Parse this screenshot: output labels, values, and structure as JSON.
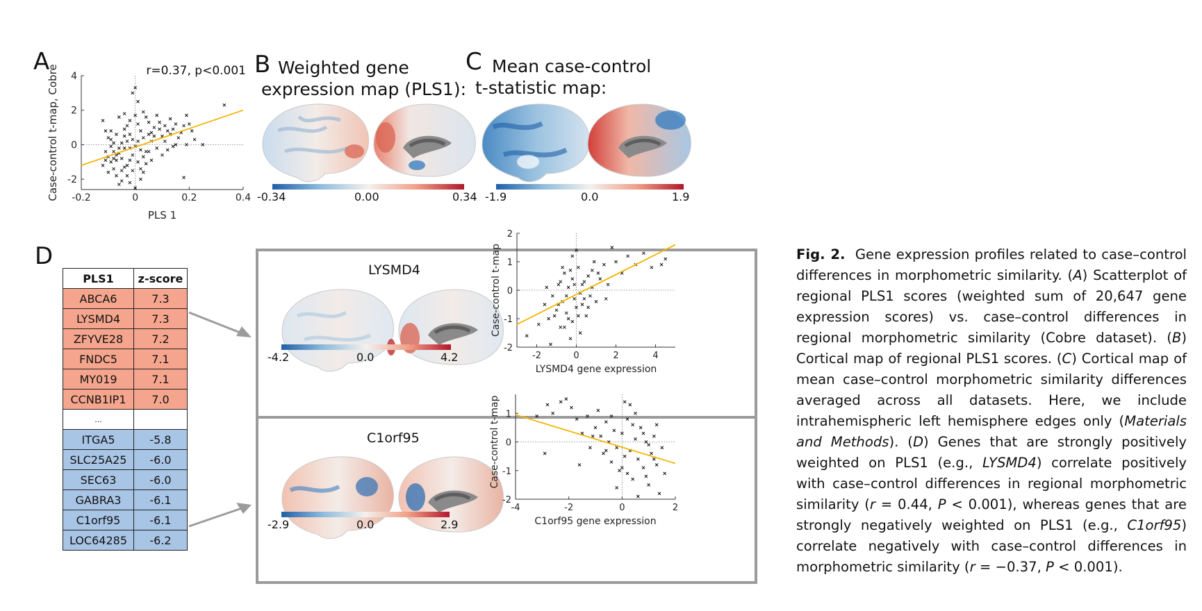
{
  "panels": {
    "a": {
      "letter": "A",
      "stats": "r=0.37, p<0.001"
    },
    "b": {
      "letter": "B",
      "title_line1": "Weighted gene",
      "title_line2": "expression map (PLS1):",
      "cbar_min": "-0.34",
      "cbar_mid": "0.00",
      "cbar_max": "0.34"
    },
    "c": {
      "letter": "C",
      "title_line1": "Mean case-control",
      "title_line2": "t-statistic map:",
      "cbar_min": "-1.9",
      "cbar_mid": "0.0",
      "cbar_max": "1.9"
    },
    "d": {
      "letter": "D"
    }
  },
  "table": {
    "headers": [
      "PLS1",
      "z-score"
    ],
    "positive_rows": [
      {
        "gene": "ABCA6",
        "z": "7.3"
      },
      {
        "gene": "LYSMD4",
        "z": "7.3"
      },
      {
        "gene": "ZFYVE28",
        "z": "7.2"
      },
      {
        "gene": "FNDC5",
        "z": "7.1"
      },
      {
        "gene": "MY019",
        "z": "7.1"
      },
      {
        "gene": "CCNB1IP1",
        "z": "7.0"
      }
    ],
    "ellipsis": "...",
    "negative_rows": [
      {
        "gene": "ITGA5",
        "z": "-5.8"
      },
      {
        "gene": "SLC25A25",
        "z": "-6.0"
      },
      {
        "gene": "SEC63",
        "z": "-6.0"
      },
      {
        "gene": "GABRA3",
        "z": "-6.1"
      },
      {
        "gene": "C1orf95",
        "z": "-6.1"
      },
      {
        "gene": "LOC64285",
        "z": "-6.2"
      }
    ]
  },
  "subpanels": {
    "lysmd4": {
      "title": "LYSMD4",
      "cbar_min": "-4.2",
      "cbar_mid": "0.0",
      "cbar_max": "4.2"
    },
    "c1orf95": {
      "title": "C1orf95",
      "cbar_min": "-2.9",
      "cbar_mid": "0.0",
      "cbar_max": "2.9"
    }
  },
  "colors": {
    "fit_line": "#f5b400",
    "positive": "#f5a58d",
    "negative": "#a9c5e6",
    "frame": "#9b9b9b",
    "cmap_low": "#1f5fa6",
    "cmap_mid": "#f4f1ee",
    "cmap_high": "#b2182b"
  },
  "caption": {
    "fig_label": "Fig. 2.",
    "text_1": "Gene expression profiles related to case–control differences in morphometric similarity. (",
    "ref_a": "A",
    "text_2": ") Scatterplot of regional PLS1 scores (weighted sum of 20,647 gene expression scores) vs. case–control differences in regional morphometric similarity (Cobre dataset). (",
    "ref_b": "B",
    "text_3": ") Cortical map of regional PLS1 scores. (",
    "ref_c": "C",
    "text_4": ") Cortical map of mean case–control morphometric similarity differences averaged across all datasets. Here, we include intrahemispheric left hemisphere edges only (",
    "methods": "Materials and Methods",
    "text_5": "). (",
    "ref_d": "D",
    "text_6": ") Genes that are strongly positively weighted on PLS1 (e.g., ",
    "gene_pos": "LYSMD4",
    "text_7": ") correlate positively with case–control differences in regional morphometric similarity (",
    "r_sym_1": "r",
    "text_8": " = 0.44, ",
    "p_sym_1": "P",
    "text_9": " < 0.001), whereas genes that are strongly negatively weighted on PLS1 (e.g., ",
    "gene_neg": "C1orf95",
    "text_10": ") correlate negatively with case–control differences in morphometric similarity (",
    "r_sym_2": "r",
    "text_11": " = −0.37, ",
    "p_sym_2": "P",
    "text_12": " < 0.001)."
  },
  "chart_data": [
    {
      "id": "A",
      "type": "scatter",
      "ylabel": "Case-control t-map, Cobre",
      "xlabel": "PLS 1",
      "xlim": [
        -0.2,
        0.4
      ],
      "ylim": [
        -2.6,
        4
      ],
      "xticks": [
        "-0.2",
        "0",
        "0.2",
        "0.4"
      ],
      "yticks": [
        "-2",
        "0",
        "2",
        "4"
      ],
      "annotation": "r=0.37, p<0.001",
      "fit": {
        "x": [
          -0.2,
          0.4
        ],
        "y": [
          -1.2,
          2.0
        ]
      },
      "points": [
        [
          -0.12,
          1.4
        ],
        [
          -0.11,
          0.8
        ],
        [
          -0.1,
          0.4
        ],
        [
          -0.09,
          -0.1
        ],
        [
          -0.08,
          -0.4
        ],
        [
          -0.1,
          -0.7
        ],
        [
          -0.12,
          -1.2
        ],
        [
          -0.08,
          -1.4
        ],
        [
          -0.07,
          -0.9
        ],
        [
          -0.06,
          -0.5
        ],
        [
          -0.05,
          0.1
        ],
        [
          -0.04,
          0.9
        ],
        [
          -0.03,
          1.1
        ],
        [
          -0.02,
          -0.2
        ],
        [
          -0.01,
          -0.6
        ],
        [
          0.0,
          3.3
        ],
        [
          -0.01,
          3.0
        ],
        [
          0.01,
          2.5
        ],
        [
          -0.03,
          -1.8
        ],
        [
          -0.05,
          -2.1
        ],
        [
          -0.06,
          -2.3
        ],
        [
          -0.02,
          -2.2
        ],
        [
          0.0,
          -2.5
        ],
        [
          0.02,
          -2.0
        ],
        [
          0.03,
          -1.6
        ],
        [
          -0.04,
          -1.3
        ],
        [
          -0.07,
          0.6
        ],
        [
          -0.09,
          0.3
        ],
        [
          -0.11,
          -0.4
        ],
        [
          -0.06,
          1.6
        ],
        [
          -0.04,
          1.8
        ],
        [
          -0.02,
          1.4
        ],
        [
          0.0,
          1.7
        ],
        [
          0.01,
          1.2
        ],
        [
          0.02,
          0.8
        ],
        [
          0.03,
          1.9
        ],
        [
          0.04,
          1.6
        ],
        [
          0.05,
          1.3
        ],
        [
          0.06,
          0.7
        ],
        [
          0.07,
          1.0
        ],
        [
          0.08,
          1.7
        ],
        [
          0.09,
          1.3
        ],
        [
          0.1,
          0.5
        ],
        [
          0.11,
          1.1
        ],
        [
          0.12,
          0.8
        ],
        [
          0.13,
          1.5
        ],
        [
          0.14,
          0.9
        ],
        [
          0.15,
          1.2
        ],
        [
          0.16,
          0.4
        ],
        [
          0.18,
          1.1
        ],
        [
          0.19,
          1.7
        ],
        [
          0.2,
          1.2
        ],
        [
          0.21,
          0.8
        ],
        [
          0.22,
          0.3
        ],
        [
          0.25,
          0.0
        ],
        [
          0.33,
          2.3
        ],
        [
          0.18,
          -1.9
        ],
        [
          0.19,
          0.0
        ],
        [
          0.15,
          0.0
        ],
        [
          0.12,
          -0.3
        ],
        [
          0.1,
          -0.6
        ],
        [
          0.08,
          -0.2
        ],
        [
          0.06,
          -0.9
        ],
        [
          0.05,
          -0.4
        ],
        [
          0.04,
          -1.1
        ],
        [
          0.03,
          -0.7
        ],
        [
          0.02,
          -0.3
        ],
        [
          0.01,
          0.2
        ],
        [
          0.0,
          -0.1
        ],
        [
          -0.01,
          0.3
        ],
        [
          -0.02,
          0.6
        ],
        [
          -0.03,
          0.2
        ],
        [
          -0.04,
          -0.2
        ],
        [
          -0.05,
          -0.8
        ],
        [
          -0.06,
          -0.2
        ],
        [
          -0.07,
          -0.6
        ],
        [
          -0.08,
          0.1
        ],
        [
          -0.09,
          -1.0
        ],
        [
          -0.1,
          -1.6
        ],
        [
          -0.11,
          -0.9
        ],
        [
          -0.07,
          -1.8
        ],
        [
          -0.05,
          -1.5
        ],
        [
          -0.03,
          -1.2
        ],
        [
          -0.01,
          -1.5
        ],
        [
          0.01,
          -1.0
        ],
        [
          0.02,
          -1.4
        ],
        [
          0.04,
          -0.4
        ],
        [
          0.06,
          0.2
        ],
        [
          0.07,
          0.5
        ],
        [
          0.09,
          0.9
        ],
        [
          0.11,
          0.2
        ],
        [
          0.13,
          0.6
        ],
        [
          0.14,
          -0.1
        ],
        [
          0.17,
          0.7
        ],
        [
          0.05,
          0.6
        ],
        [
          0.03,
          0.4
        ],
        [
          -0.02,
          -0.9
        ],
        [
          -0.04,
          0.5
        ],
        [
          -0.08,
          -0.8
        ],
        [
          -0.09,
          0.8
        ]
      ]
    },
    {
      "id": "D-LYSMD4",
      "type": "scatter",
      "ylabel": "Case-control t-map",
      "xlabel": "LYSMD4 gene expression",
      "xlim": [
        -3,
        5
      ],
      "ylim": [
        -2,
        2
      ],
      "xticks": [
        "-2",
        "0",
        "2",
        "4"
      ],
      "yticks": [
        "-2",
        "-1",
        "0",
        "1",
        "2"
      ],
      "fit": {
        "x": [
          -3,
          5
        ],
        "y": [
          -1.2,
          1.6
        ]
      },
      "points": [
        [
          -2.5,
          -1.6
        ],
        [
          -1.9,
          -1.2
        ],
        [
          -1.6,
          -0.5
        ],
        [
          -1.4,
          -1.0
        ],
        [
          -1.2,
          -0.2
        ],
        [
          -1.0,
          -0.7
        ],
        [
          -0.9,
          0.2
        ],
        [
          -0.8,
          -1.3
        ],
        [
          -0.7,
          -0.4
        ],
        [
          -0.6,
          0.6
        ],
        [
          -0.5,
          -0.8
        ],
        [
          -0.4,
          0.1
        ],
        [
          -0.3,
          -1.7
        ],
        [
          -0.2,
          0.4
        ],
        [
          -0.1,
          -0.3
        ],
        [
          0.0,
          -0.6
        ],
        [
          0.1,
          0.8
        ],
        [
          0.2,
          -0.1
        ],
        [
          0.3,
          -0.5
        ],
        [
          0.4,
          0.3
        ],
        [
          0.5,
          -0.9
        ],
        [
          0.6,
          0.5
        ],
        [
          0.7,
          -0.2
        ],
        [
          0.8,
          0.1
        ],
        [
          0.9,
          1.0
        ],
        [
          1.0,
          -0.4
        ],
        [
          1.2,
          0.4
        ],
        [
          1.4,
          0.9
        ],
        [
          1.6,
          0.2
        ],
        [
          1.8,
          1.5
        ],
        [
          2.0,
          1.0
        ],
        [
          2.3,
          0.6
        ],
        [
          2.6,
          1.2
        ],
        [
          3.0,
          0.9
        ],
        [
          3.4,
          1.3
        ],
        [
          3.8,
          0.8
        ],
        [
          4.3,
          0.9
        ],
        [
          4.5,
          1.1
        ],
        [
          -0.2,
          1.2
        ],
        [
          -0.4,
          -1.0
        ],
        [
          -0.6,
          -1.3
        ],
        [
          -0.8,
          0.3
        ],
        [
          -1.1,
          -0.9
        ],
        [
          -0.3,
          0.7
        ],
        [
          0.0,
          1.4
        ],
        [
          0.3,
          0.2
        ],
        [
          -0.5,
          -0.2
        ],
        [
          -0.7,
          0.8
        ],
        [
          -1.3,
          -1.9
        ],
        [
          0.2,
          -1.5
        ],
        [
          0.6,
          -0.6
        ],
        [
          1.1,
          0.6
        ],
        [
          0.1,
          -0.9
        ],
        [
          -0.1,
          0.2
        ],
        [
          -0.9,
          -0.5
        ],
        [
          0.4,
          -0.3
        ],
        [
          -0.2,
          -1.1
        ],
        [
          0.8,
          0.7
        ],
        [
          -1.5,
          0.1
        ],
        [
          1.5,
          -0.3
        ]
      ]
    },
    {
      "id": "D-C1orf95",
      "type": "scatter",
      "ylabel": "Case-control t-map",
      "xlabel": "C1orf95 gene expression",
      "xlim": [
        -4,
        2
      ],
      "ylim": [
        -2,
        2
      ],
      "xticks": [
        "-4",
        "-2",
        "0",
        "2"
      ],
      "yticks": [
        "-2",
        "-1",
        "0",
        "1",
        "2"
      ],
      "fit": {
        "x": [
          -4,
          2
        ],
        "y": [
          0.95,
          -0.75
        ]
      },
      "points": [
        [
          -2.8,
          1.3
        ],
        [
          -2.6,
          1.0
        ],
        [
          -2.3,
          1.4
        ],
        [
          -2.1,
          1.5
        ],
        [
          -1.9,
          1.2
        ],
        [
          -1.7,
          0.8
        ],
        [
          -1.5,
          0.3
        ],
        [
          -1.3,
          0.9
        ],
        [
          -1.2,
          -0.2
        ],
        [
          -1.0,
          0.5
        ],
        [
          -0.9,
          1.1
        ],
        [
          -0.8,
          0.2
        ],
        [
          -0.7,
          -0.4
        ],
        [
          -0.6,
          0.7
        ],
        [
          -0.5,
          0.0
        ],
        [
          -0.4,
          -0.7
        ],
        [
          -0.3,
          0.4
        ],
        [
          -0.2,
          -0.2
        ],
        [
          -0.1,
          -1.0
        ],
        [
          0.0,
          0.3
        ],
        [
          0.1,
          -0.5
        ],
        [
          0.2,
          0.8
        ],
        [
          0.3,
          -0.3
        ],
        [
          0.4,
          -1.3
        ],
        [
          0.5,
          0.1
        ],
        [
          0.6,
          -0.6
        ],
        [
          0.7,
          0.5
        ],
        [
          0.8,
          -0.9
        ],
        [
          0.9,
          0.0
        ],
        [
          1.0,
          -1.5
        ],
        [
          1.1,
          -0.4
        ],
        [
          1.2,
          0.2
        ],
        [
          1.3,
          -0.8
        ],
        [
          1.4,
          -1.8
        ],
        [
          1.5,
          -0.2
        ],
        [
          1.6,
          -1.1
        ],
        [
          0.3,
          1.3
        ],
        [
          0.5,
          1.0
        ],
        [
          0.1,
          1.4
        ],
        [
          -2.9,
          -0.4
        ],
        [
          -3.2,
          0.9
        ],
        [
          -1.6,
          -0.8
        ],
        [
          -0.2,
          -1.6
        ],
        [
          0.6,
          -1.9
        ],
        [
          0.9,
          -1.2
        ],
        [
          1.2,
          -0.6
        ],
        [
          0.4,
          0.6
        ],
        [
          -0.6,
          -0.3
        ],
        [
          0.0,
          -0.9
        ],
        [
          0.8,
          0.3
        ],
        [
          -1.1,
          0.2
        ],
        [
          1.3,
          0.6
        ],
        [
          0.2,
          -1.1
        ],
        [
          -0.4,
          0.9
        ],
        [
          1.0,
          -0.1
        ]
      ]
    }
  ]
}
